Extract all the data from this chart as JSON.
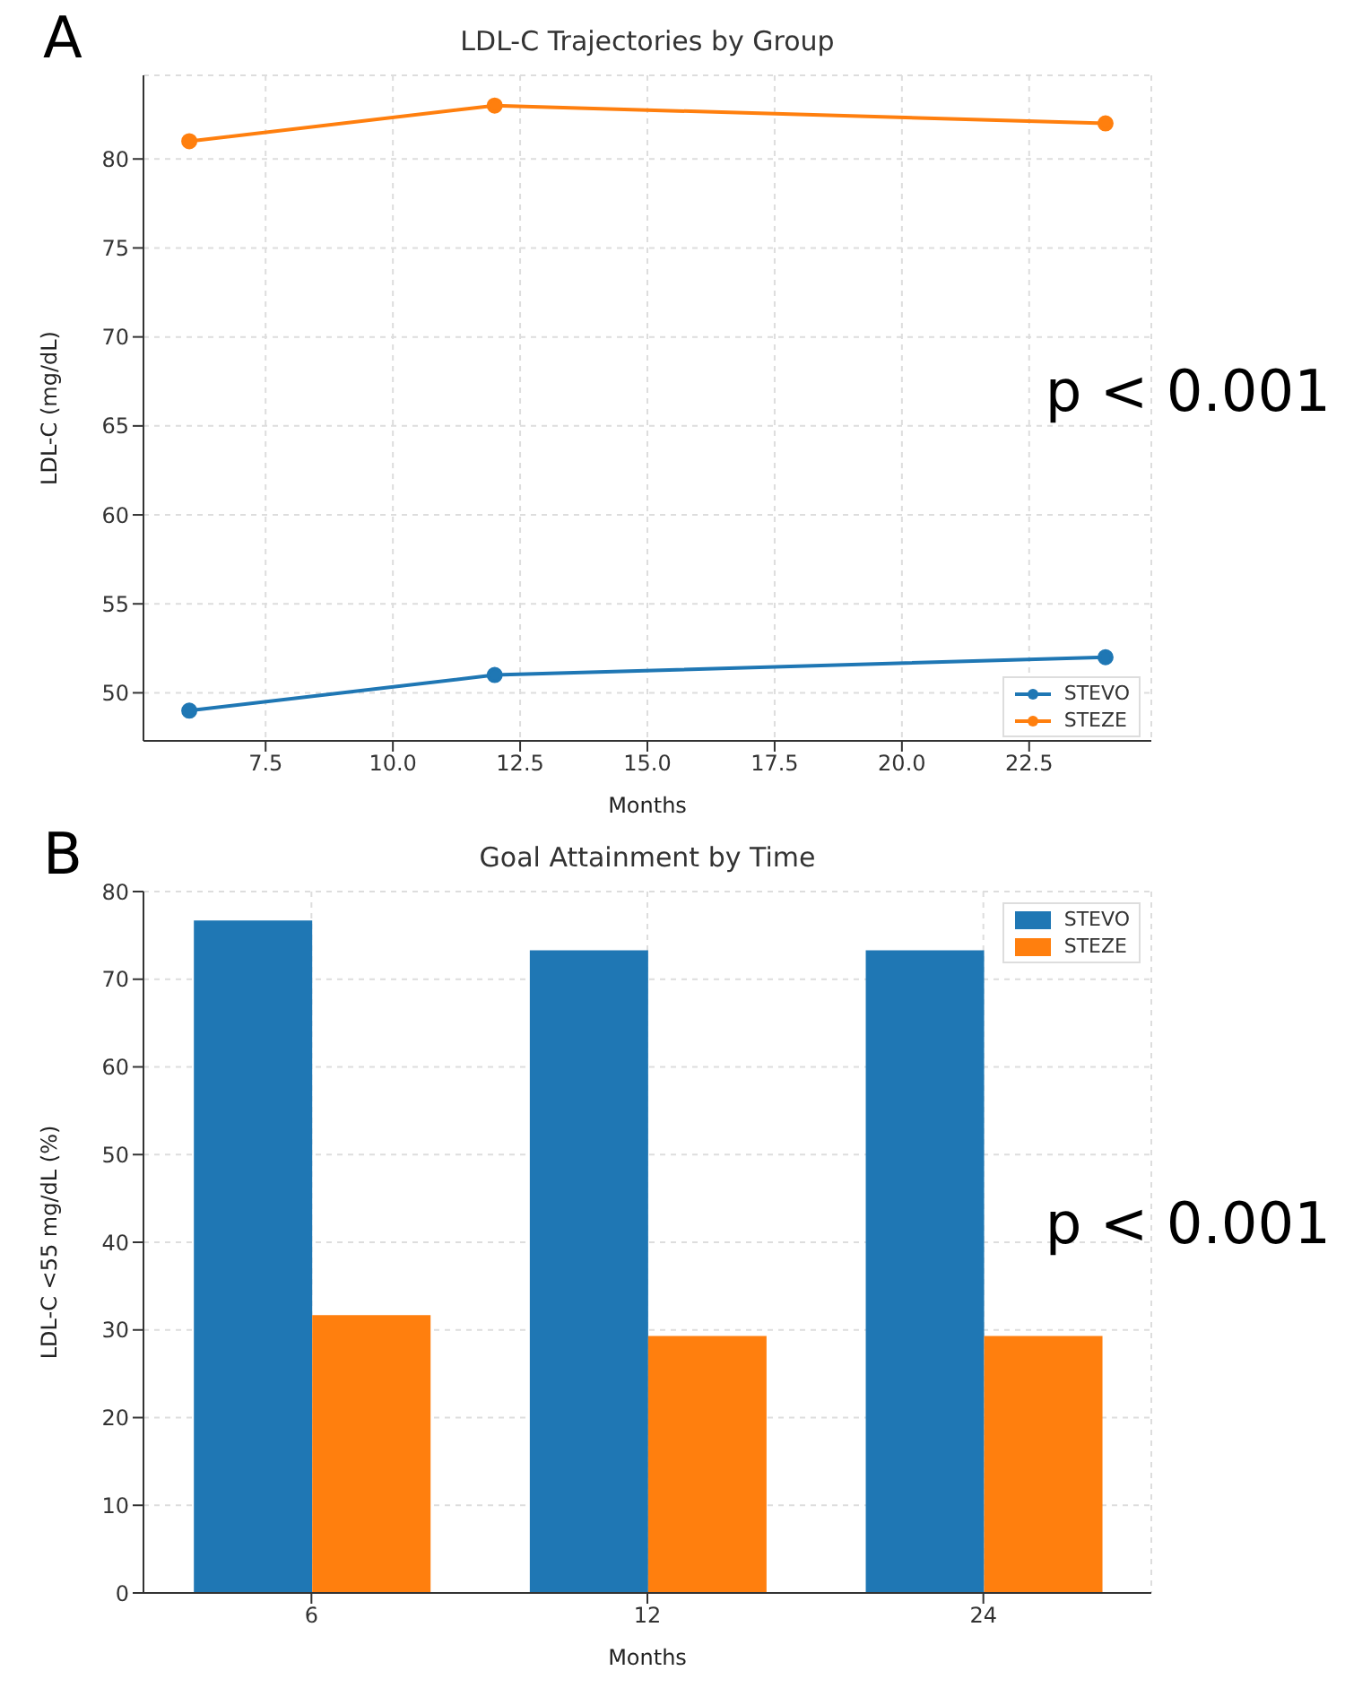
{
  "chart_data": [
    {
      "type": "line",
      "title": "LDL-C Trajectories by Group",
      "xlabel": "Months",
      "ylabel": "LDL-C (mg/dL)",
      "annotations": [
        "A",
        "p < 0.001"
      ],
      "x": [
        6,
        12,
        24
      ],
      "series": [
        {
          "name": "STEVO",
          "color": "#1f77b4",
          "values": [
            49,
            51,
            52
          ]
        },
        {
          "name": "STEZE",
          "color": "#ff7f0e",
          "values": [
            81,
            83,
            82
          ]
        }
      ],
      "xlim": [
        5.1,
        24.9
      ],
      "xticks": [
        7.5,
        {
          "value": 10,
          "label": "10.0"
        },
        12.5,
        {
          "value": 15,
          "label": "15.0"
        },
        17.5,
        {
          "value": 20,
          "label": "20.0"
        },
        22.5
      ],
      "ylim": [
        47.3,
        84.7
      ],
      "yticks": [
        50,
        55,
        60,
        65,
        70,
        75,
        80
      ],
      "grid": true,
      "legend": "bottom right",
      "marker": "circle",
      "line_style": "solid"
    },
    {
      "type": "bar",
      "title": "Goal Attainment by Time",
      "xlabel": "Months",
      "ylabel": "LDL-C <55 mg/dL (%)",
      "annotations": [
        "B",
        "p < 0.001"
      ],
      "categories": [
        "6",
        "12",
        "24"
      ],
      "series": [
        {
          "name": "STEVO",
          "color": "#1f77b4",
          "values": [
            76.7,
            73.3,
            73.3
          ]
        },
        {
          "name": "STEZE",
          "color": "#ff7f0e",
          "values": [
            31.7,
            29.3,
            29.3
          ]
        }
      ],
      "ylim": [
        0,
        80
      ],
      "yticks": [
        0,
        10,
        20,
        30,
        40,
        50,
        60,
        70,
        80
      ],
      "grid": true,
      "legend": "top right"
    }
  ]
}
